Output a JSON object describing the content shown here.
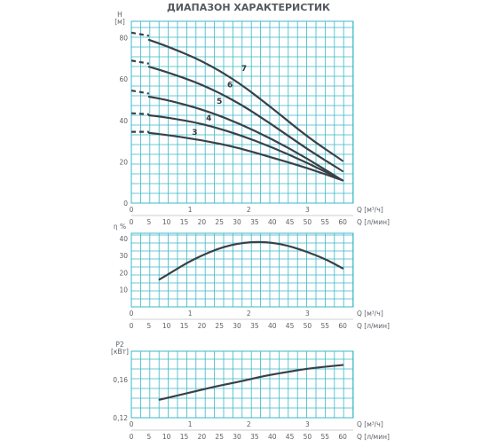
{
  "title": "ДИАПАЗОН ХАРАКТЕРИСТИК",
  "colors": {
    "grid": "#3bb8c8",
    "curve": "#3a4048",
    "text": "#5a5f66"
  },
  "x_axis": {
    "q_m3h_ticks": [
      "0",
      "1",
      "2",
      "3"
    ],
    "q_m3h_values": [
      0,
      1,
      2,
      3
    ],
    "q_lmin_ticks": [
      "0",
      "5",
      "10",
      "15",
      "20",
      "25",
      "30",
      "35",
      "40",
      "45",
      "50",
      "55",
      "60"
    ],
    "q_lmin_values": [
      0,
      5,
      10,
      15,
      20,
      25,
      30,
      35,
      40,
      45,
      50,
      55,
      60
    ],
    "label_m3h": "Q [м³/ч]",
    "label_lmin": "Q [л/мин]",
    "range_lmin": [
      0,
      63
    ]
  },
  "chart_data": [
    {
      "type": "line",
      "ylabel": "H",
      "yunit": "[м]",
      "yticks": [
        "0",
        "20",
        "40",
        "60",
        "80"
      ],
      "ytick_values": [
        0,
        20,
        40,
        60,
        80
      ],
      "ylim": [
        0,
        88
      ],
      "grid": true,
      "series": [
        {
          "name": "3",
          "dashed_x": [
            0,
            5
          ],
          "dashed_y": [
            34.5,
            34.5
          ],
          "x": [
            5,
            10,
            20,
            30,
            40,
            50,
            60
          ],
          "y": [
            34,
            33,
            30.5,
            27,
            22,
            17,
            11
          ]
        },
        {
          "name": "4",
          "dashed_x": [
            0,
            5
          ],
          "dashed_y": [
            43.5,
            43
          ],
          "x": [
            5,
            10,
            20,
            30,
            40,
            50,
            60
          ],
          "y": [
            42.5,
            41.5,
            38.5,
            33.5,
            27,
            19.5,
            11
          ]
        },
        {
          "name": "5",
          "dashed_x": [
            0,
            5
          ],
          "dashed_y": [
            54.5,
            53
          ],
          "x": [
            5,
            10,
            20,
            30,
            40,
            50,
            60
          ],
          "y": [
            51.5,
            50,
            45.5,
            39,
            31,
            21.5,
            11
          ]
        },
        {
          "name": "6",
          "dashed_x": [
            0,
            5
          ],
          "dashed_y": [
            69,
            67.5
          ],
          "x": [
            5,
            10,
            20,
            30,
            40,
            50,
            60
          ],
          "y": [
            66,
            63.5,
            57.5,
            49,
            38,
            26,
            15.5
          ]
        },
        {
          "name": "7",
          "dashed_x": [
            0,
            5
          ],
          "dashed_y": [
            82.5,
            81
          ],
          "x": [
            5,
            10,
            20,
            30,
            40,
            50,
            60
          ],
          "y": [
            79,
            76,
            69,
            59,
            46,
            32,
            20.5
          ]
        }
      ],
      "label_positions": [
        {
          "name": "3",
          "x": 18,
          "y": 33
        },
        {
          "name": "4",
          "x": 22,
          "y": 40
        },
        {
          "name": "5",
          "x": 25,
          "y": 48
        },
        {
          "name": "6",
          "x": 28,
          "y": 56
        },
        {
          "name": "7",
          "x": 32,
          "y": 64
        }
      ]
    },
    {
      "type": "line",
      "ylabel": "η %",
      "yunit": "",
      "yticks": [
        "10",
        "20",
        "30",
        "40"
      ],
      "ytick_values": [
        10,
        20,
        30,
        40
      ],
      "ylim": [
        0,
        43
      ],
      "grid": true,
      "series": [
        {
          "x": [
            8,
            12,
            16,
            20,
            24,
            28,
            32,
            36,
            40,
            44,
            48,
            52,
            56,
            60
          ],
          "y": [
            16,
            21,
            26,
            30,
            33.5,
            36,
            37.5,
            38,
            37.5,
            36,
            33.5,
            30.5,
            27,
            22.5
          ]
        }
      ]
    },
    {
      "type": "line",
      "ylabel": "P2",
      "yunit": "[кВт]",
      "yticks": [
        "0,12",
        "0,16"
      ],
      "ytick_values": [
        0.12,
        0.16
      ],
      "ylim": [
        0.12,
        0.19
      ],
      "grid": true,
      "series": [
        {
          "x": [
            8,
            12,
            16,
            20,
            24,
            28,
            32,
            36,
            40,
            44,
            48,
            52,
            56,
            60
          ],
          "y": [
            0.139,
            0.1425,
            0.146,
            0.1495,
            0.153,
            0.156,
            0.159,
            0.1625,
            0.1655,
            0.168,
            0.1705,
            0.1725,
            0.174,
            0.1755
          ]
        }
      ]
    }
  ]
}
